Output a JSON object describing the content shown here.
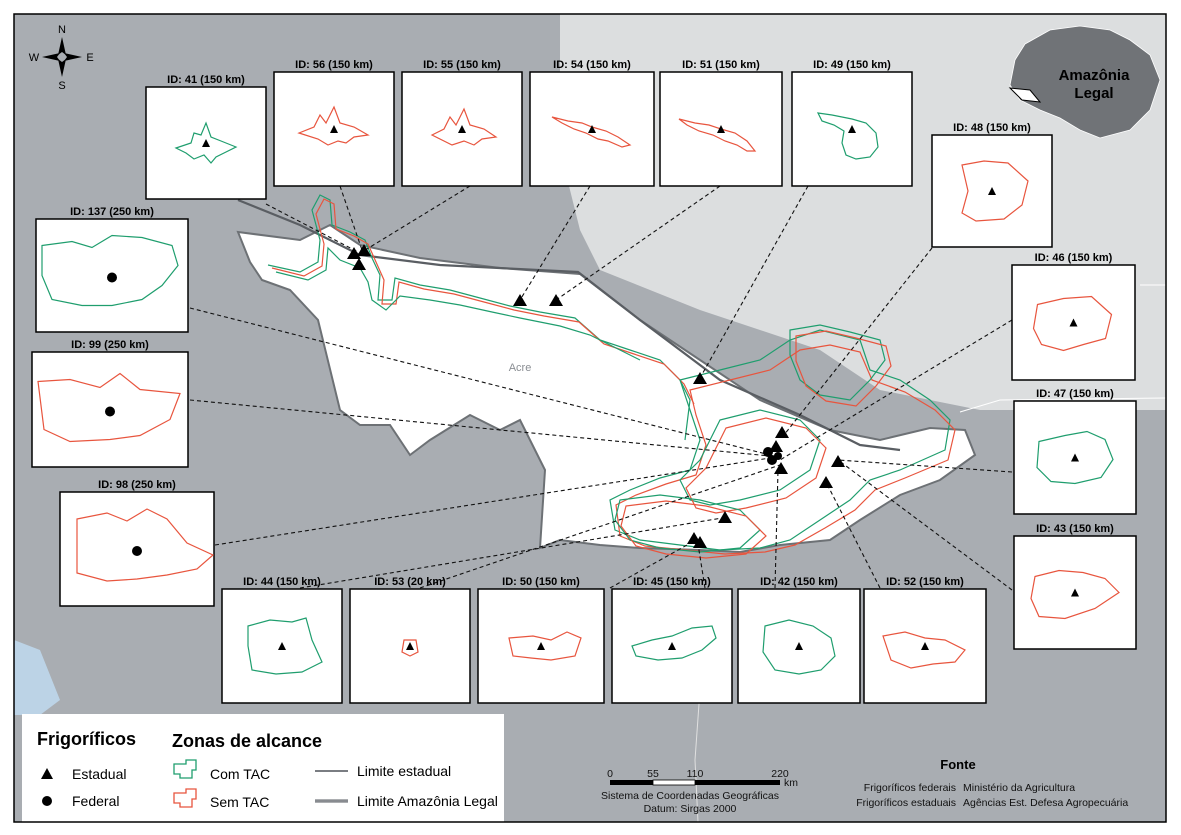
{
  "map": {
    "state_label": "Acre",
    "compass": {
      "north": "N",
      "south": "S",
      "east": "E",
      "west": "W"
    },
    "locator": {
      "label_line1": "Amazônia",
      "label_line2": "Legal"
    }
  },
  "insets": [
    {
      "id_label": "ID: 41 (150 km)",
      "color": "#1f9e6e",
      "marker": "triangle"
    },
    {
      "id_label": "ID: 56 (150 km)",
      "color": "#e8553e",
      "marker": "triangle"
    },
    {
      "id_label": "ID: 55 (150 km)",
      "color": "#e8553e",
      "marker": "triangle"
    },
    {
      "id_label": "ID: 54 (150 km)",
      "color": "#e8553e",
      "marker": "triangle"
    },
    {
      "id_label": "ID: 51 (150 km)",
      "color": "#e8553e",
      "marker": "triangle"
    },
    {
      "id_label": "ID: 49 (150 km)",
      "color": "#1f9e6e",
      "marker": "triangle"
    },
    {
      "id_label": "ID: 48 (150 km)",
      "color": "#e8553e",
      "marker": "triangle"
    },
    {
      "id_label": "ID: 137 (250 km)",
      "color": "#1f9e6e",
      "marker": "circle"
    },
    {
      "id_label": "ID: 46 (150 km)",
      "color": "#e8553e",
      "marker": "triangle"
    },
    {
      "id_label": "ID: 99 (250 km)",
      "color": "#e8553e",
      "marker": "circle"
    },
    {
      "id_label": "ID: 47 (150 km)",
      "color": "#1f9e6e",
      "marker": "triangle"
    },
    {
      "id_label": "ID: 98 (250 km)",
      "color": "#e8553e",
      "marker": "circle"
    },
    {
      "id_label": "ID: 43 (150 km)",
      "color": "#e8553e",
      "marker": "triangle"
    },
    {
      "id_label": "ID: 44 (150 km)",
      "color": "#1f9e6e",
      "marker": "triangle"
    },
    {
      "id_label": "ID: 53 (20 km)",
      "color": "#e8553e",
      "marker": "triangle"
    },
    {
      "id_label": "ID: 50 (150 km)",
      "color": "#e8553e",
      "marker": "triangle"
    },
    {
      "id_label": "ID: 45 (150 km)",
      "color": "#1f9e6e",
      "marker": "triangle"
    },
    {
      "id_label": "ID: 42 (150 km)",
      "color": "#1f9e6e",
      "marker": "triangle"
    },
    {
      "id_label": "ID: 52 (150 km)",
      "color": "#e8553e",
      "marker": "triangle"
    }
  ],
  "legend": {
    "frigorificos_title": "Frigoríficos",
    "estadual": "Estadual",
    "federal": "Federal",
    "zonas_title": "Zonas de alcance",
    "com_tac": "Com TAC",
    "sem_tac": "Sem TAC",
    "limite_estadual": "Limite estadual",
    "limite_amazonia": "Limite Amazônia Legal",
    "colors": {
      "com_tac": "#1f9e6e",
      "sem_tac": "#e8553e"
    }
  },
  "scale": {
    "ticks": [
      "0",
      "55",
      "110",
      "220"
    ],
    "unit": "km",
    "crs_line1": "Sistema de Coordenadas Geográficas",
    "crs_line2": "Datum: Sirgas 2000"
  },
  "fonte": {
    "title": "Fonte",
    "row1_label": "Frigoríficos federais",
    "row1_value": "Ministério da Agricultura",
    "row2_label": "Frigoríficos estaduais",
    "row2_value": "Agências Est. Defesa Agropecuária"
  }
}
